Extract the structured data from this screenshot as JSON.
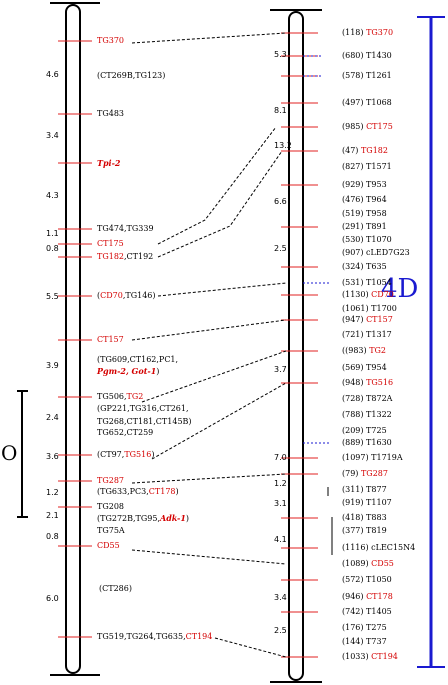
{
  "chromosome_label": "4D",
  "bracket_symbol": "O",
  "left_map": {
    "distances": [
      "4.6",
      "3.4",
      "4.3",
      "1.1",
      "0.8",
      "5.5",
      "3.9",
      "2.4",
      "3.6",
      "1.2",
      "2.1",
      "0.8",
      "6.0"
    ],
    "markers": [
      {
        "segments": [
          {
            "text": "TG370",
            "color": "red"
          }
        ]
      },
      {
        "segments": [
          {
            "text": "(CT269B,TG123)",
            "color": "black"
          }
        ]
      },
      {
        "segments": [
          {
            "text": "TG483",
            "color": "black"
          }
        ]
      },
      {
        "segments": [
          {
            "text": "Tpi-2",
            "color": "redi"
          }
        ]
      },
      {
        "segments": [
          {
            "text": "TG474,TG339",
            "color": "black"
          }
        ]
      },
      {
        "segments": [
          {
            "text": "CT175",
            "color": "red"
          }
        ]
      },
      {
        "segments": [
          {
            "text": "TG182",
            "color": "red"
          },
          {
            "text": ",CT192",
            "color": "black"
          }
        ]
      },
      {
        "segments": [
          {
            "text": "(",
            "color": "black"
          },
          {
            "text": "CD70",
            "color": "red"
          },
          {
            "text": ",TG146)",
            "color": "black"
          }
        ]
      },
      {
        "segments": [
          {
            "text": "CT157",
            "color": "red"
          }
        ]
      },
      {
        "segments": [
          {
            "text": "(TG609,CT162,PC1,",
            "color": "black"
          }
        ]
      },
      {
        "segments": [
          {
            "text": "Pgm-2, Got-1",
            "color": "redi"
          },
          {
            "text": ")",
            "color": "black"
          }
        ]
      },
      {
        "segments": [
          {
            "text": "TG506,",
            "color": "black"
          },
          {
            "text": "TG2",
            "color": "red"
          }
        ]
      },
      {
        "segments": [
          {
            "text": "(GP221,TG316,CT261,",
            "color": "black"
          }
        ]
      },
      {
        "segments": [
          {
            "text": "TG268,CT181,CT145B)",
            "color": "black"
          }
        ]
      },
      {
        "segments": [
          {
            "text": "TG652,CT259",
            "color": "black"
          }
        ]
      },
      {
        "segments": [
          {
            "text": "(CT97,",
            "color": "black"
          },
          {
            "text": "TG516",
            "color": "red"
          },
          {
            "text": ")",
            "color": "black"
          }
        ]
      },
      {
        "segments": [
          {
            "text": "TG287",
            "color": "red"
          }
        ]
      },
      {
        "segments": [
          {
            "text": "(TG633,PC3,",
            "color": "black"
          },
          {
            "text": "CT178",
            "color": "red"
          },
          {
            "text": ")",
            "color": "black"
          }
        ]
      },
      {
        "segments": [
          {
            "text": "TG208",
            "color": "black"
          }
        ]
      },
      {
        "segments": [
          {
            "text": "(TG272B,TG95,",
            "color": "black"
          },
          {
            "text": "Adk-1",
            "color": "redi"
          },
          {
            "text": ")",
            "color": "black"
          }
        ]
      },
      {
        "segments": [
          {
            "text": "TG75A",
            "color": "black"
          }
        ]
      },
      {
        "segments": [
          {
            "text": "CD55",
            "color": "red"
          }
        ]
      },
      {
        "segments": [
          {
            "text": "(CT286)",
            "color": "black"
          }
        ]
      },
      {
        "segments": [
          {
            "text": "TG519,TG264,TG635,",
            "color": "black"
          },
          {
            "text": "CT194",
            "color": "red"
          }
        ]
      }
    ]
  },
  "right_map": {
    "distances": [
      "5.3",
      "8.1",
      "13.2",
      "6.6",
      "2.5",
      "3.7",
      "7.0",
      "1.2",
      "3.1",
      "4.1",
      "3.4",
      "2.5"
    ],
    "markers": [
      {
        "segments": [
          {
            "text": "(118) ",
            "color": "black"
          },
          {
            "text": "TG370",
            "color": "red"
          }
        ]
      },
      {
        "segments": [
          {
            "text": "(680) T1430",
            "color": "black"
          }
        ]
      },
      {
        "segments": [
          {
            "text": "(578) T1261",
            "color": "black"
          }
        ]
      },
      {
        "segments": [
          {
            "text": "(497) T1068",
            "color": "black"
          }
        ]
      },
      {
        "segments": [
          {
            "text": "(985) ",
            "color": "black"
          },
          {
            "text": "CT175",
            "color": "red"
          }
        ]
      },
      {
        "segments": [
          {
            "text": "(47) ",
            "color": "black"
          },
          {
            "text": "TG182",
            "color": "red"
          }
        ]
      },
      {
        "segments": [
          {
            "text": "(827) T1571",
            "color": "black"
          }
        ]
      },
      {
        "segments": [
          {
            "text": "(929) T953",
            "color": "black"
          }
        ]
      },
      {
        "segments": [
          {
            "text": "(476) T964",
            "color": "black"
          }
        ]
      },
      {
        "segments": [
          {
            "text": "(519) T958",
            "color": "black"
          }
        ]
      },
      {
        "segments": [
          {
            "text": "(291) T891",
            "color": "black"
          }
        ]
      },
      {
        "segments": [
          {
            "text": "(530) T1070",
            "color": "black"
          }
        ]
      },
      {
        "segments": [
          {
            "text": "(907) cLED7G23",
            "color": "black"
          }
        ]
      },
      {
        "segments": [
          {
            "text": "(324) T635",
            "color": "black"
          }
        ]
      },
      {
        "segments": [
          {
            "text": "(531) T1054",
            "color": "black"
          }
        ]
      },
      {
        "segments": [
          {
            "text": "(1130) ",
            "color": "black"
          },
          {
            "text": "CD70",
            "color": "red"
          }
        ]
      },
      {
        "segments": [
          {
            "text": "(1061) T1700",
            "color": "black"
          }
        ]
      },
      {
        "segments": [
          {
            "text": "(947) ",
            "color": "black"
          },
          {
            "text": "CT157",
            "color": "red"
          }
        ]
      },
      {
        "segments": [
          {
            "text": "(721) T1317",
            "color": "black"
          }
        ]
      },
      {
        "segments": [
          {
            "text": "((983) ",
            "color": "black"
          },
          {
            "text": "TG2",
            "color": "red"
          }
        ]
      },
      {
        "segments": [
          {
            "text": "(569) T954",
            "color": "black"
          }
        ]
      },
      {
        "segments": [
          {
            "text": "(948) ",
            "color": "black"
          },
          {
            "text": "TG516",
            "color": "red"
          }
        ]
      },
      {
        "segments": [
          {
            "text": "(728) T872A",
            "color": "black"
          }
        ]
      },
      {
        "segments": [
          {
            "text": "(788) T1322",
            "color": "black"
          }
        ]
      },
      {
        "segments": [
          {
            "text": "(209) T725",
            "color": "black"
          }
        ]
      },
      {
        "segments": [
          {
            "text": "(889) T1630",
            "color": "black"
          }
        ]
      },
      {
        "segments": [
          {
            "text": "(1097) T1719A",
            "color": "black"
          }
        ]
      },
      {
        "segments": [
          {
            "text": "(79) ",
            "color": "black"
          },
          {
            "text": "TG287",
            "color": "red"
          }
        ]
      },
      {
        "segments": [
          {
            "text": "(311) T877",
            "color": "black"
          }
        ]
      },
      {
        "segments": [
          {
            "text": "(919) T1107",
            "color": "black"
          }
        ]
      },
      {
        "segments": [
          {
            "text": "(418) T883",
            "color": "black"
          }
        ]
      },
      {
        "segments": [
          {
            "text": "(377) T819",
            "color": "black"
          }
        ]
      },
      {
        "segments": [
          {
            "text": "(1116) cLEC15N4",
            "color": "black"
          }
        ]
      },
      {
        "segments": [
          {
            "text": "(1089) ",
            "color": "black"
          },
          {
            "text": "CD55",
            "color": "red"
          }
        ]
      },
      {
        "segments": [
          {
            "text": "(572) T1050",
            "color": "black"
          }
        ]
      },
      {
        "segments": [
          {
            "text": "(946) ",
            "color": "black"
          },
          {
            "text": "CT178",
            "color": "red"
          }
        ]
      },
      {
        "segments": [
          {
            "text": "(742) T1405",
            "color": "black"
          }
        ]
      },
      {
        "segments": [
          {
            "text": "(176) T275",
            "color": "black"
          }
        ]
      },
      {
        "segments": [
          {
            "text": "(144) T737",
            "color": "black"
          }
        ]
      },
      {
        "segments": [
          {
            "text": "(1033) ",
            "color": "black"
          },
          {
            "text": "CT194",
            "color": "red"
          }
        ]
      }
    ]
  },
  "colors": {
    "red": "#d40000",
    "blue": "#1a1ad0",
    "tick": "#e02020"
  }
}
